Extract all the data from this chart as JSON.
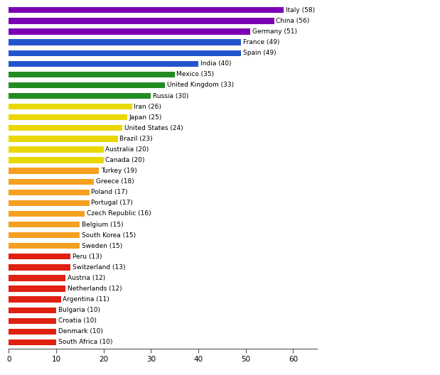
{
  "countries": [
    "Italy",
    "China",
    "Germany",
    "France",
    "Spain",
    "India",
    "Mexico",
    "United Kingdom",
    "Russia",
    "Iran",
    "Japan",
    "United States",
    "Brazil",
    "Australia",
    "Canada",
    "Turkey",
    "Greece",
    "Poland",
    "Portugal",
    "Czech Republic",
    "Belgium",
    "South Korea",
    "Sweden",
    "Peru",
    "Switzerland",
    "Austria",
    "Netherlands",
    "Argentina",
    "Bulgaria",
    "Croatia",
    "Denmark",
    "South Africa"
  ],
  "values": [
    58,
    56,
    51,
    49,
    49,
    40,
    35,
    33,
    30,
    26,
    25,
    24,
    23,
    20,
    20,
    19,
    18,
    17,
    17,
    16,
    15,
    15,
    15,
    13,
    13,
    12,
    12,
    11,
    10,
    10,
    10,
    10
  ],
  "colors": [
    "#7b00b4",
    "#7b00b4",
    "#7b00b4",
    "#2255cc",
    "#2255cc",
    "#2255cc",
    "#228b22",
    "#228b22",
    "#228b22",
    "#e8d800",
    "#e8d800",
    "#e8d800",
    "#e8d800",
    "#e8d800",
    "#e8d800",
    "#f5a020",
    "#f5a020",
    "#f5a020",
    "#f5a020",
    "#f5a020",
    "#f5a020",
    "#f5a020",
    "#f5a020",
    "#e02010",
    "#e02010",
    "#e02010",
    "#e02010",
    "#e02010",
    "#e02010",
    "#e02010",
    "#e02010",
    "#e02010"
  ],
  "xlim": [
    0,
    65
  ],
  "xticks": [
    0,
    10,
    20,
    30,
    40,
    50,
    60
  ],
  "bar_height": 0.55,
  "label_fontsize": 6.5,
  "tick_fontsize": 7.5,
  "figsize": [
    6.19,
    5.28
  ],
  "dpi": 100
}
